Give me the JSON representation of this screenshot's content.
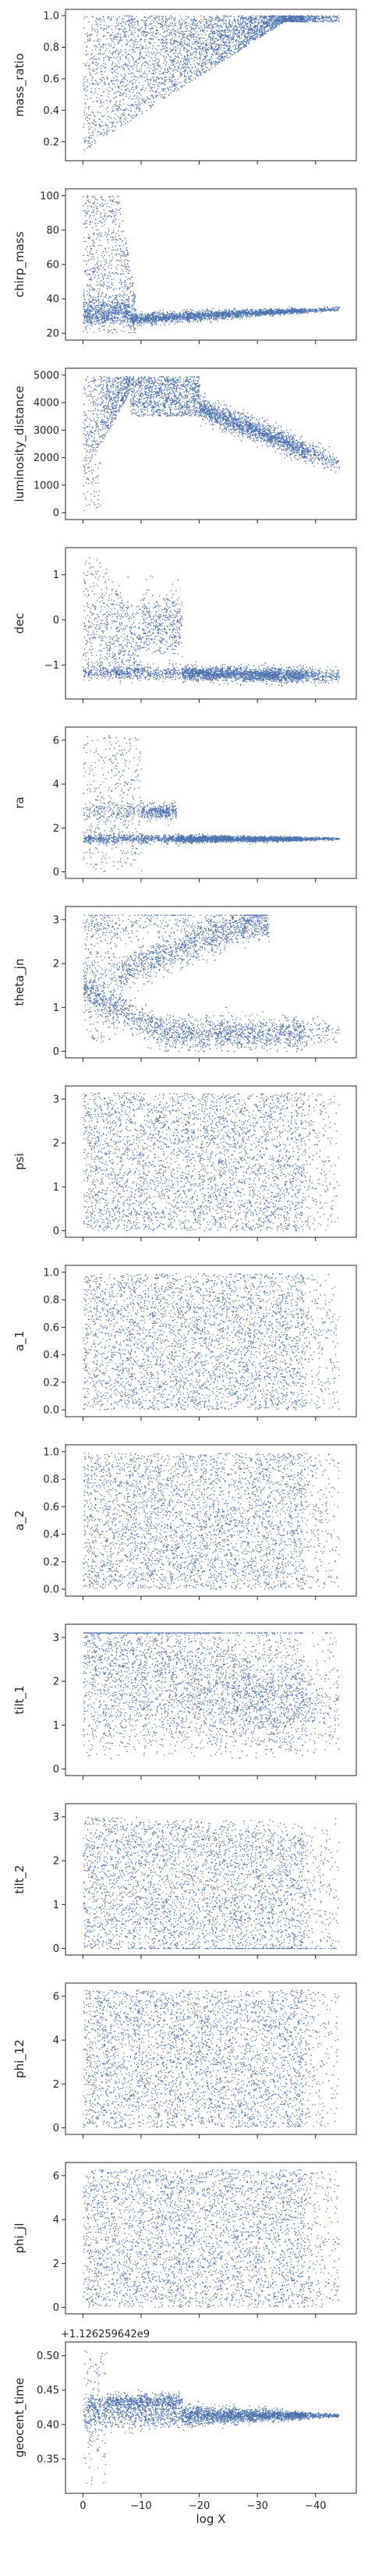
{
  "figure": {
    "color": "#4c72b0",
    "axis_color": "#262626",
    "background": "#ffffff"
  },
  "chart_data": [
    {
      "type": "scatter",
      "ylabel": "mass_ratio",
      "xlabel": "",
      "ylim": [
        0.08,
        1.04
      ],
      "yticks": [
        0.2,
        0.4,
        0.6,
        0.8,
        1.0
      ],
      "ytick_labels": [
        "0.2",
        "0.4",
        "0.6",
        "0.8",
        "1.0"
      ],
      "xlim": [
        3,
        -47
      ],
      "xticks": [
        0,
        -10,
        -20,
        -30,
        -40
      ],
      "xtick_labels": [],
      "offset_text": "",
      "grid": false,
      "legend": "none"
    },
    {
      "type": "scatter",
      "ylabel": "chirp_mass",
      "xlabel": "",
      "ylim": [
        16,
        104
      ],
      "yticks": [
        20,
        40,
        60,
        80,
        100
      ],
      "ytick_labels": [
        "20",
        "40",
        "60",
        "80",
        "100"
      ],
      "xlim": [
        3,
        -47
      ],
      "xticks": [
        0,
        -10,
        -20,
        -30,
        -40
      ],
      "xtick_labels": [],
      "offset_text": "",
      "grid": false,
      "legend": "none"
    },
    {
      "type": "scatter",
      "ylabel": "luminosity_distance",
      "xlabel": "",
      "ylim": [
        -250,
        5250
      ],
      "yticks": [
        0,
        1000,
        2000,
        3000,
        4000,
        5000
      ],
      "ytick_labels": [
        "0",
        "1000",
        "2000",
        "3000",
        "4000",
        "5000"
      ],
      "xlim": [
        3,
        -47
      ],
      "xticks": [
        0,
        -10,
        -20,
        -30,
        -40
      ],
      "xtick_labels": [],
      "offset_text": "",
      "grid": false,
      "legend": "none"
    },
    {
      "type": "scatter",
      "ylabel": "dec",
      "xlabel": "",
      "ylim": [
        -1.75,
        1.6
      ],
      "yticks": [
        -1,
        0,
        1
      ],
      "ytick_labels": [
        "−1",
        "0",
        "1"
      ],
      "xlim": [
        3,
        -47
      ],
      "xticks": [
        0,
        -10,
        -20,
        -30,
        -40
      ],
      "xtick_labels": [],
      "offset_text": "",
      "grid": false,
      "legend": "none"
    },
    {
      "type": "scatter",
      "ylabel": "ra",
      "xlabel": "",
      "ylim": [
        -0.3,
        6.6
      ],
      "yticks": [
        0,
        2,
        4,
        6
      ],
      "ytick_labels": [
        "0",
        "2",
        "4",
        "6"
      ],
      "xlim": [
        3,
        -47
      ],
      "xticks": [
        0,
        -10,
        -20,
        -30,
        -40
      ],
      "xtick_labels": [],
      "offset_text": "",
      "grid": false,
      "legend": "none"
    },
    {
      "type": "scatter",
      "ylabel": "theta_jn",
      "xlabel": "",
      "ylim": [
        -0.15,
        3.3
      ],
      "yticks": [
        0,
        1,
        2,
        3
      ],
      "ytick_labels": [
        "0",
        "1",
        "2",
        "3"
      ],
      "xlim": [
        3,
        -47
      ],
      "xticks": [
        0,
        -10,
        -20,
        -30,
        -40
      ],
      "xtick_labels": [],
      "offset_text": "",
      "grid": false,
      "legend": "none"
    },
    {
      "type": "scatter",
      "ylabel": "psi",
      "xlabel": "",
      "ylim": [
        -0.15,
        3.3
      ],
      "yticks": [
        0,
        1,
        2,
        3
      ],
      "ytick_labels": [
        "0",
        "1",
        "2",
        "3"
      ],
      "xlim": [
        3,
        -47
      ],
      "xticks": [
        0,
        -10,
        -20,
        -30,
        -40
      ],
      "xtick_labels": [],
      "offset_text": "",
      "grid": false,
      "legend": "none"
    },
    {
      "type": "scatter",
      "ylabel": "a_1",
      "xlabel": "",
      "ylim": [
        -0.05,
        1.05
      ],
      "yticks": [
        0.0,
        0.2,
        0.4,
        0.6,
        0.8,
        1.0
      ],
      "ytick_labels": [
        "0.0",
        "0.2",
        "0.4",
        "0.6",
        "0.8",
        "1.0"
      ],
      "xlim": [
        3,
        -47
      ],
      "xticks": [
        0,
        -10,
        -20,
        -30,
        -40
      ],
      "xtick_labels": [],
      "offset_text": "",
      "grid": false,
      "legend": "none"
    },
    {
      "type": "scatter",
      "ylabel": "a_2",
      "xlabel": "",
      "ylim": [
        -0.05,
        1.05
      ],
      "yticks": [
        0.0,
        0.2,
        0.4,
        0.6,
        0.8,
        1.0
      ],
      "ytick_labels": [
        "0.0",
        "0.2",
        "0.4",
        "0.6",
        "0.8",
        "1.0"
      ],
      "xlim": [
        3,
        -47
      ],
      "xticks": [
        0,
        -10,
        -20,
        -30,
        -40
      ],
      "xtick_labels": [],
      "offset_text": "",
      "grid": false,
      "legend": "none"
    },
    {
      "type": "scatter",
      "ylabel": "tilt_1",
      "xlabel": "",
      "ylim": [
        -0.15,
        3.3
      ],
      "yticks": [
        0,
        1,
        2,
        3
      ],
      "ytick_labels": [
        "0",
        "1",
        "2",
        "3"
      ],
      "xlim": [
        3,
        -47
      ],
      "xticks": [
        0,
        -10,
        -20,
        -30,
        -40
      ],
      "xtick_labels": [],
      "offset_text": "",
      "grid": false,
      "legend": "none"
    },
    {
      "type": "scatter",
      "ylabel": "tilt_2",
      "xlabel": "",
      "ylim": [
        -0.15,
        3.3
      ],
      "yticks": [
        0,
        1,
        2,
        3
      ],
      "ytick_labels": [
        "0",
        "1",
        "2",
        "3"
      ],
      "xlim": [
        3,
        -47
      ],
      "xticks": [
        0,
        -10,
        -20,
        -30,
        -40
      ],
      "xtick_labels": [],
      "offset_text": "",
      "grid": false,
      "legend": "none"
    },
    {
      "type": "scatter",
      "ylabel": "phi_12",
      "xlabel": "",
      "ylim": [
        -0.3,
        6.6
      ],
      "yticks": [
        0,
        2,
        4,
        6
      ],
      "ytick_labels": [
        "0",
        "2",
        "4",
        "6"
      ],
      "xlim": [
        3,
        -47
      ],
      "xticks": [
        0,
        -10,
        -20,
        -30,
        -40
      ],
      "xtick_labels": [],
      "offset_text": "",
      "grid": false,
      "legend": "none"
    },
    {
      "type": "scatter",
      "ylabel": "phi_jl",
      "xlabel": "",
      "ylim": [
        -0.3,
        6.6
      ],
      "yticks": [
        0,
        2,
        4,
        6
      ],
      "ytick_labels": [
        "0",
        "2",
        "4",
        "6"
      ],
      "xlim": [
        3,
        -47
      ],
      "xticks": [
        0,
        -10,
        -20,
        -30,
        -40
      ],
      "xtick_labels": [],
      "offset_text": "",
      "grid": false,
      "legend": "none"
    },
    {
      "type": "scatter",
      "ylabel": "geocent_time",
      "xlabel": "log X",
      "ylim": [
        0.3,
        0.52
      ],
      "yticks": [
        0.35,
        0.4,
        0.45,
        0.5
      ],
      "ytick_labels": [
        "0.35",
        "0.40",
        "0.45",
        "0.50"
      ],
      "xlim": [
        3,
        -47
      ],
      "xticks": [
        0,
        -10,
        -20,
        -30,
        -40
      ],
      "xtick_labels": [
        "0",
        "−10",
        "−20",
        "−30",
        "−40"
      ],
      "offset_text": "+1.126259642e9",
      "grid": false,
      "legend": "none"
    }
  ]
}
